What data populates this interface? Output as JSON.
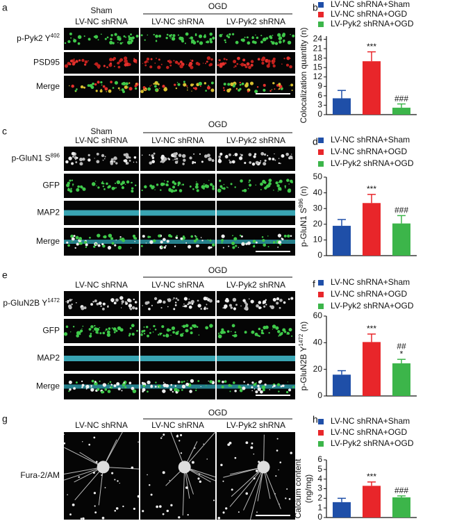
{
  "panels": [
    {
      "letter": "a",
      "sham": "Sham",
      "ogd": "OGD",
      "columns": [
        "LV-NC shRNA",
        "LV-NC shRNA",
        "LV-Pyk2 shRNA"
      ],
      "rows": [
        [
          "p-Pyk2 Y",
          "402"
        ],
        [
          "PSD95"
        ],
        [
          "Merge"
        ]
      ]
    },
    {
      "letter": "c",
      "sham": "Sham",
      "ogd": "OGD",
      "columns": [
        "LV-NC shRNA",
        "LV-NC shRNA",
        "LV-Pyk2 shRNA"
      ],
      "rows": [
        [
          "p-GluN1 S",
          "896"
        ],
        [
          "GFP"
        ],
        [
          "MAP2"
        ],
        [
          "Merge"
        ]
      ]
    },
    {
      "letter": "e",
      "ogd": "OGD",
      "columns": [
        "LV-NC shRNA",
        "LV-NC shRNA",
        "LV-Pyk2 shRNA"
      ],
      "rows": [
        [
          "p-GluN2B Y",
          "1472"
        ],
        [
          "GFP"
        ],
        [
          "MAP2"
        ],
        [
          "Merge"
        ]
      ]
    },
    {
      "letter": "g",
      "ogd": "OGD",
      "columns": [
        "LV-NC shRNA",
        "LV-NC shRNA",
        "LV-Pyk2 shRNA"
      ],
      "rows": [
        [
          "Fura-2/AM"
        ]
      ]
    }
  ],
  "chart_data": [
    {
      "type": "bar",
      "panel": "b",
      "ylabel": [
        [
          "Colocalization quantity (n)"
        ]
      ],
      "categories": [
        "LV-NC shRNA+Sham",
        "LV-NC shRNA+OGD",
        "LV-Pyk2 shRNA+OGD"
      ],
      "colors": [
        "#1f4fa8",
        "#e8262a",
        "#3cb54a"
      ],
      "values": [
        5.2,
        17,
        2.2
      ],
      "errors": [
        2.5,
        3,
        1.2
      ],
      "annotations": [
        null,
        [
          "***"
        ],
        [
          "###"
        ]
      ],
      "ylim": [
        0,
        25
      ],
      "yticks": [
        0,
        3,
        6,
        9,
        12,
        15,
        18,
        21,
        24
      ]
    },
    {
      "type": "bar",
      "panel": "d",
      "ylabel": [
        [
          "p-GluN1 S",
          "896",
          " (n)"
        ]
      ],
      "categories": [
        "LV-NC shRNA+Sham",
        "LV-NC shRNA+OGD",
        "LV-Pyk2 shRNA+OGD"
      ],
      "colors": [
        "#1f4fa8",
        "#e8262a",
        "#3cb54a"
      ],
      "values": [
        19,
        33.5,
        20.5
      ],
      "errors": [
        4,
        5.5,
        5
      ],
      "annotations": [
        null,
        [
          "***"
        ],
        [
          "###"
        ]
      ],
      "ylim": [
        0,
        50
      ],
      "yticks": [
        0,
        10,
        20,
        30,
        40,
        50
      ]
    },
    {
      "type": "bar",
      "panel": "f",
      "ylabel": [
        [
          "p-GluN2B Y",
          "1472",
          " (n)"
        ]
      ],
      "categories": [
        "LV-NC shRNA+Sham",
        "LV-NC shRNA+OGD",
        "LV-Pyk2 shRNA+OGD"
      ],
      "colors": [
        "#1f4fa8",
        "#e8262a",
        "#3cb54a"
      ],
      "values": [
        16,
        40.5,
        24.5
      ],
      "errors": [
        3,
        6,
        3
      ],
      "annotations": [
        null,
        [
          "***"
        ],
        [
          "##",
          "*"
        ]
      ],
      "ylim": [
        0,
        60
      ],
      "yticks": [
        0,
        20,
        40,
        60
      ]
    },
    {
      "type": "bar",
      "panel": "h",
      "ylabel": [
        [
          "Calcium content"
        ],
        [
          "(ng/mg)"
        ]
      ],
      "categories": [
        "LV-NC shRNA+Sham",
        "LV-NC shRNA+OGD",
        "LV-Pyk2 shRNA+OGD"
      ],
      "colors": [
        "#1f4fa8",
        "#e8262a",
        "#3cb54a"
      ],
      "values": [
        1.6,
        3.3,
        2.1
      ],
      "errors": [
        0.4,
        0.4,
        0.15
      ],
      "annotations": [
        null,
        [
          "***"
        ],
        [
          "###"
        ]
      ],
      "ylim": [
        0,
        6
      ],
      "yticks": [
        0,
        1,
        2,
        3,
        4,
        5,
        6
      ]
    }
  ]
}
